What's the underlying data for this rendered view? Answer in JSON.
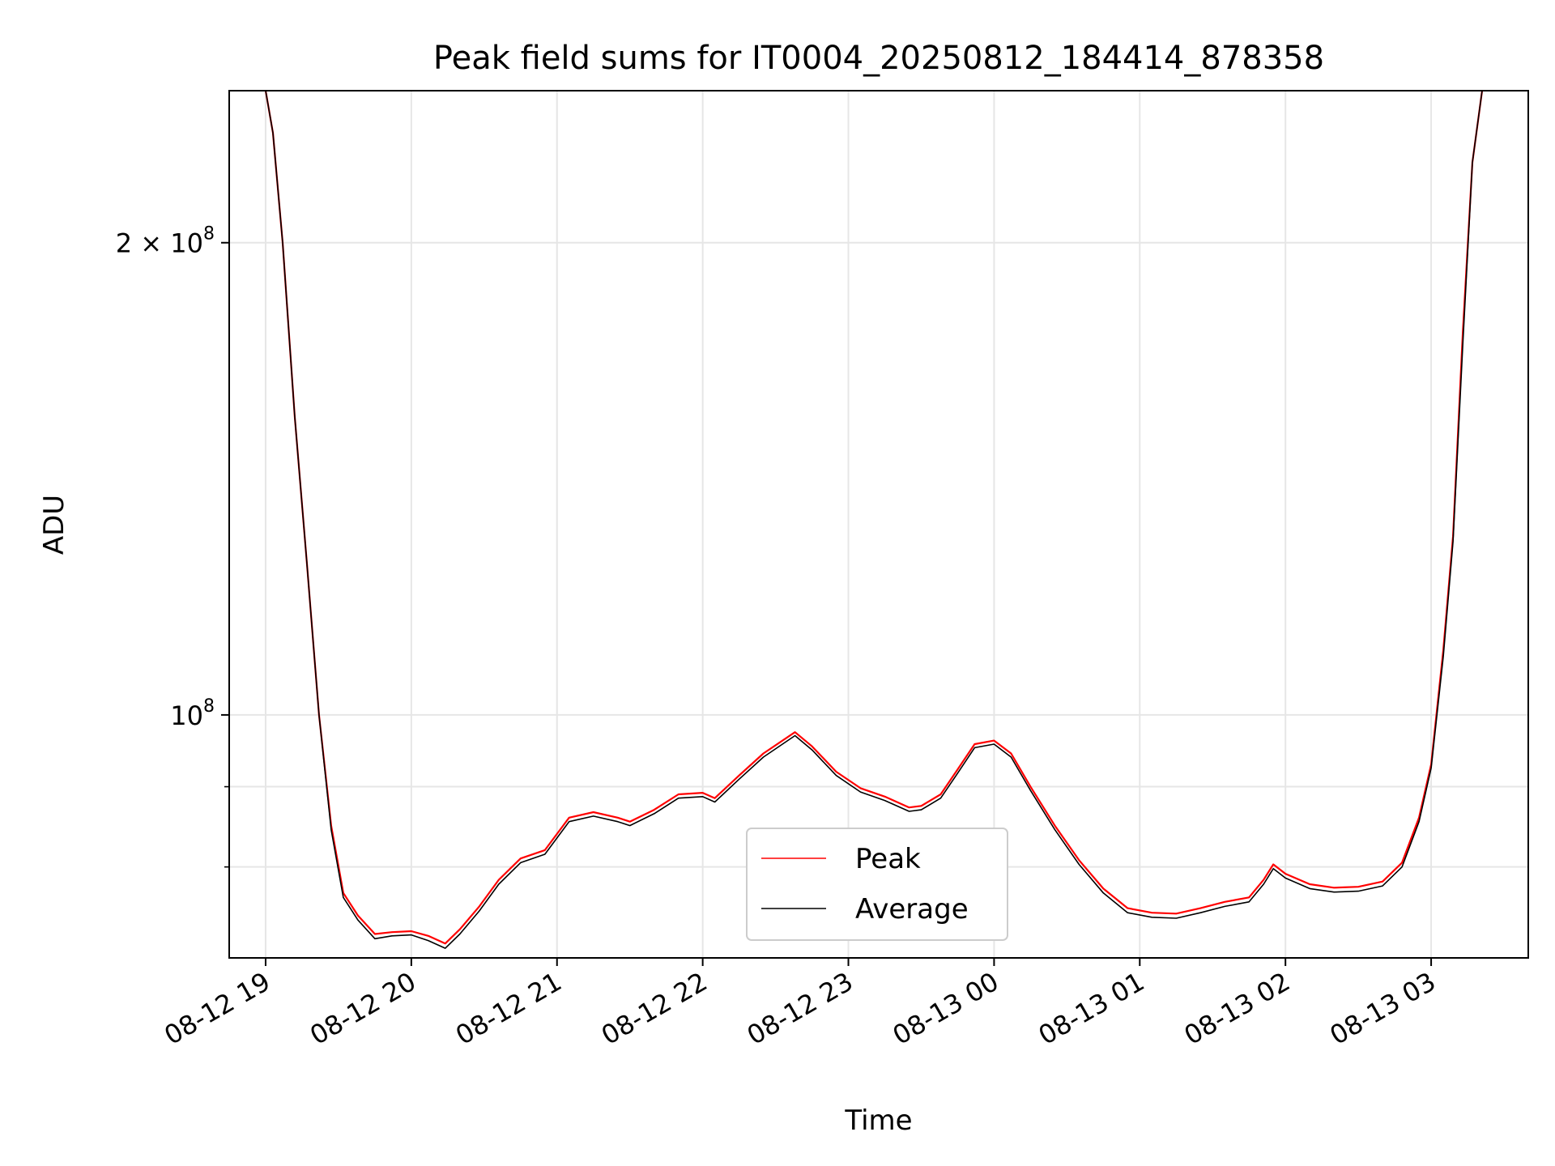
{
  "chart_data": {
    "type": "line",
    "title": "Peak field sums for IT0004_20250812_184414_878358",
    "xlabel": "Time",
    "ylabel": "ADU",
    "y_scale": "log",
    "xlim": [
      "2025-08-12 18:45",
      "2025-08-13 03:40"
    ],
    "ylim": [
      70000000,
      250000000
    ],
    "x_ticks": [
      {
        "t": "2025-08-12 19:00",
        "label": "08-12 19"
      },
      {
        "t": "2025-08-12 20:00",
        "label": "08-12 20"
      },
      {
        "t": "2025-08-12 21:00",
        "label": "08-12 21"
      },
      {
        "t": "2025-08-12 22:00",
        "label": "08-12 22"
      },
      {
        "t": "2025-08-12 23:00",
        "label": "08-12 23"
      },
      {
        "t": "2025-08-13 00:00",
        "label": "08-13 00"
      },
      {
        "t": "2025-08-13 01:00",
        "label": "08-13 01"
      },
      {
        "t": "2025-08-13 02:00",
        "label": "08-13 02"
      },
      {
        "t": "2025-08-13 03:00",
        "label": "08-13 03"
      }
    ],
    "y_ticks_major": [
      {
        "v": 100000000,
        "base": "10",
        "exp": "8",
        "coef": ""
      },
      {
        "v": 200000000,
        "base": "10",
        "exp": "8",
        "coef": "2"
      }
    ],
    "y_ticks_minor": [
      80000000,
      90000000
    ],
    "grid": true,
    "legend": {
      "position": "lower-center"
    },
    "series": [
      {
        "name": "Peak",
        "color": "#ff0000",
        "points": [
          [
            "2025-08-12 19:00",
            250000000
          ],
          [
            "2025-08-12 19:03",
            235000000
          ],
          [
            "2025-08-12 19:07",
            200000000
          ],
          [
            "2025-08-12 19:12",
            155000000
          ],
          [
            "2025-08-12 19:17",
            125000000
          ],
          [
            "2025-08-12 19:22",
            100000000
          ],
          [
            "2025-08-12 19:27",
            85000000
          ],
          [
            "2025-08-12 19:32",
            77000000
          ],
          [
            "2025-08-12 19:38",
            74500000
          ],
          [
            "2025-08-12 19:45",
            72500000
          ],
          [
            "2025-08-12 19:52",
            72700000
          ],
          [
            "2025-08-12 20:00",
            72800000
          ],
          [
            "2025-08-12 20:07",
            72300000
          ],
          [
            "2025-08-12 20:14",
            71500000
          ],
          [
            "2025-08-12 20:20",
            73000000
          ],
          [
            "2025-08-12 20:28",
            75500000
          ],
          [
            "2025-08-12 20:36",
            78500000
          ],
          [
            "2025-08-12 20:45",
            81000000
          ],
          [
            "2025-08-12 20:55",
            82000000
          ],
          [
            "2025-08-12 21:05",
            86000000
          ],
          [
            "2025-08-12 21:15",
            86700000
          ],
          [
            "2025-08-12 21:25",
            86000000
          ],
          [
            "2025-08-12 21:30",
            85500000
          ],
          [
            "2025-08-12 21:40",
            87000000
          ],
          [
            "2025-08-12 21:50",
            89000000
          ],
          [
            "2025-08-12 22:00",
            89200000
          ],
          [
            "2025-08-12 22:05",
            88500000
          ],
          [
            "2025-08-12 22:15",
            91500000
          ],
          [
            "2025-08-12 22:25",
            94500000
          ],
          [
            "2025-08-12 22:38",
            97500000
          ],
          [
            "2025-08-12 22:45",
            95500000
          ],
          [
            "2025-08-12 22:55",
            92000000
          ],
          [
            "2025-08-12 23:05",
            89800000
          ],
          [
            "2025-08-12 23:15",
            88700000
          ],
          [
            "2025-08-12 23:25",
            87300000
          ],
          [
            "2025-08-12 23:30",
            87500000
          ],
          [
            "2025-08-12 23:38",
            89000000
          ],
          [
            "2025-08-12 23:45",
            92300000
          ],
          [
            "2025-08-12 23:52",
            95800000
          ],
          [
            "2025-08-13 00:00",
            96300000
          ],
          [
            "2025-08-13 00:07",
            94500000
          ],
          [
            "2025-08-13 00:15",
            90000000
          ],
          [
            "2025-08-13 00:25",
            85000000
          ],
          [
            "2025-08-13 00:35",
            80800000
          ],
          [
            "2025-08-13 00:45",
            77500000
          ],
          [
            "2025-08-13 00:55",
            75300000
          ],
          [
            "2025-08-13 01:05",
            74800000
          ],
          [
            "2025-08-13 01:15",
            74700000
          ],
          [
            "2025-08-13 01:25",
            75300000
          ],
          [
            "2025-08-13 01:35",
            76000000
          ],
          [
            "2025-08-13 01:45",
            76500000
          ],
          [
            "2025-08-13 01:51",
            78500000
          ],
          [
            "2025-08-13 01:55",
            80300000
          ],
          [
            "2025-08-13 02:00",
            79200000
          ],
          [
            "2025-08-13 02:10",
            78000000
          ],
          [
            "2025-08-13 02:20",
            77600000
          ],
          [
            "2025-08-13 02:30",
            77700000
          ],
          [
            "2025-08-13 02:40",
            78300000
          ],
          [
            "2025-08-13 02:48",
            80500000
          ],
          [
            "2025-08-13 02:55",
            86000000
          ],
          [
            "2025-08-13 03:00",
            93000000
          ],
          [
            "2025-08-13 03:05",
            110000000
          ],
          [
            "2025-08-13 03:09",
            130000000
          ],
          [
            "2025-08-13 03:13",
            175000000
          ],
          [
            "2025-08-13 03:17",
            225000000
          ],
          [
            "2025-08-13 03:21",
            250000000
          ]
        ]
      },
      {
        "name": "Average",
        "color": "#000000",
        "points": [
          [
            "2025-08-12 19:00",
            250000000
          ],
          [
            "2025-08-12 19:03",
            235000000
          ],
          [
            "2025-08-12 19:07",
            200000000
          ],
          [
            "2025-08-12 19:12",
            155000000
          ],
          [
            "2025-08-12 19:17",
            125000000
          ],
          [
            "2025-08-12 19:22",
            100000000
          ],
          [
            "2025-08-12 19:27",
            84500000
          ],
          [
            "2025-08-12 19:32",
            76500000
          ],
          [
            "2025-08-12 19:38",
            74000000
          ],
          [
            "2025-08-12 19:45",
            72000000
          ],
          [
            "2025-08-12 19:52",
            72300000
          ],
          [
            "2025-08-12 20:00",
            72400000
          ],
          [
            "2025-08-12 20:07",
            71800000
          ],
          [
            "2025-08-12 20:14",
            71000000
          ],
          [
            "2025-08-12 20:20",
            72500000
          ],
          [
            "2025-08-12 20:28",
            75000000
          ],
          [
            "2025-08-12 20:36",
            78000000
          ],
          [
            "2025-08-12 20:45",
            80500000
          ],
          [
            "2025-08-12 20:55",
            81500000
          ],
          [
            "2025-08-12 21:05",
            85500000
          ],
          [
            "2025-08-12 21:15",
            86200000
          ],
          [
            "2025-08-12 21:25",
            85500000
          ],
          [
            "2025-08-12 21:30",
            85000000
          ],
          [
            "2025-08-12 21:40",
            86500000
          ],
          [
            "2025-08-12 21:50",
            88500000
          ],
          [
            "2025-08-12 22:00",
            88700000
          ],
          [
            "2025-08-12 22:05",
            88000000
          ],
          [
            "2025-08-12 22:15",
            91000000
          ],
          [
            "2025-08-12 22:25",
            94000000
          ],
          [
            "2025-08-12 22:38",
            97000000
          ],
          [
            "2025-08-12 22:45",
            95000000
          ],
          [
            "2025-08-12 22:55",
            91500000
          ],
          [
            "2025-08-12 23:05",
            89300000
          ],
          [
            "2025-08-12 23:15",
            88200000
          ],
          [
            "2025-08-12 23:25",
            86800000
          ],
          [
            "2025-08-12 23:30",
            87000000
          ],
          [
            "2025-08-12 23:38",
            88500000
          ],
          [
            "2025-08-12 23:45",
            91800000
          ],
          [
            "2025-08-12 23:52",
            95300000
          ],
          [
            "2025-08-13 00:00",
            95800000
          ],
          [
            "2025-08-13 00:07",
            94000000
          ],
          [
            "2025-08-13 00:15",
            89500000
          ],
          [
            "2025-08-13 00:25",
            84500000
          ],
          [
            "2025-08-13 00:35",
            80300000
          ],
          [
            "2025-08-13 00:45",
            77000000
          ],
          [
            "2025-08-13 00:55",
            74800000
          ],
          [
            "2025-08-13 01:05",
            74300000
          ],
          [
            "2025-08-13 01:15",
            74200000
          ],
          [
            "2025-08-13 01:25",
            74800000
          ],
          [
            "2025-08-13 01:35",
            75500000
          ],
          [
            "2025-08-13 01:45",
            76000000
          ],
          [
            "2025-08-13 01:51",
            78000000
          ],
          [
            "2025-08-13 01:55",
            79800000
          ],
          [
            "2025-08-13 02:00",
            78700000
          ],
          [
            "2025-08-13 02:10",
            77500000
          ],
          [
            "2025-08-13 02:20",
            77100000
          ],
          [
            "2025-08-13 02:30",
            77200000
          ],
          [
            "2025-08-13 02:40",
            77800000
          ],
          [
            "2025-08-13 02:48",
            80000000
          ],
          [
            "2025-08-13 02:55",
            85500000
          ],
          [
            "2025-08-13 03:00",
            92500000
          ],
          [
            "2025-08-13 03:05",
            109000000
          ],
          [
            "2025-08-13 03:09",
            129000000
          ],
          [
            "2025-08-13 03:13",
            172000000
          ],
          [
            "2025-08-13 03:17",
            225000000
          ],
          [
            "2025-08-13 03:21",
            250000000
          ]
        ]
      }
    ]
  }
}
